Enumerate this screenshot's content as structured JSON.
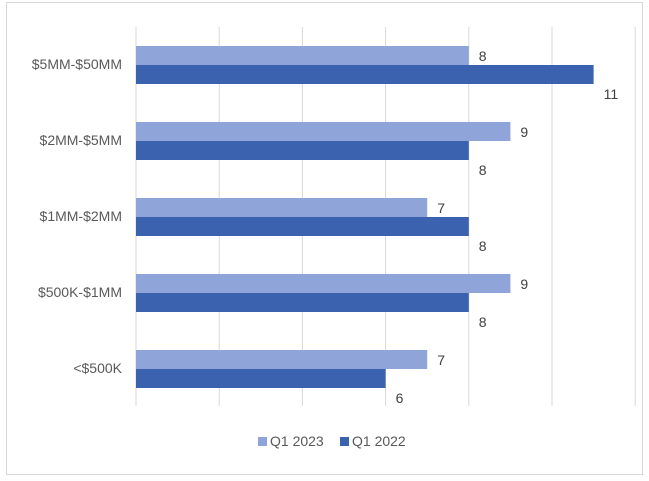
{
  "chart_data": {
    "type": "bar",
    "orientation": "horizontal",
    "title": "",
    "xlabel": "",
    "ylabel": "",
    "categories": [
      "$5MM-$50MM",
      "$2MM-$5MM",
      "$1MM-$2MM",
      "$500K-$1MM",
      "<$500K"
    ],
    "series": [
      {
        "name": "Q1 2023",
        "color": "#8fa4d8",
        "values": [
          8,
          9,
          7,
          9,
          7
        ]
      },
      {
        "name": "Q1 2022",
        "color": "#3b62ae",
        "values": [
          11,
          8,
          8,
          8,
          6
        ]
      }
    ],
    "xlim": [
      0,
      12
    ],
    "grid": true,
    "gridline_color": "#d9d9d9",
    "data_labels": true,
    "legend_position": "bottom"
  }
}
